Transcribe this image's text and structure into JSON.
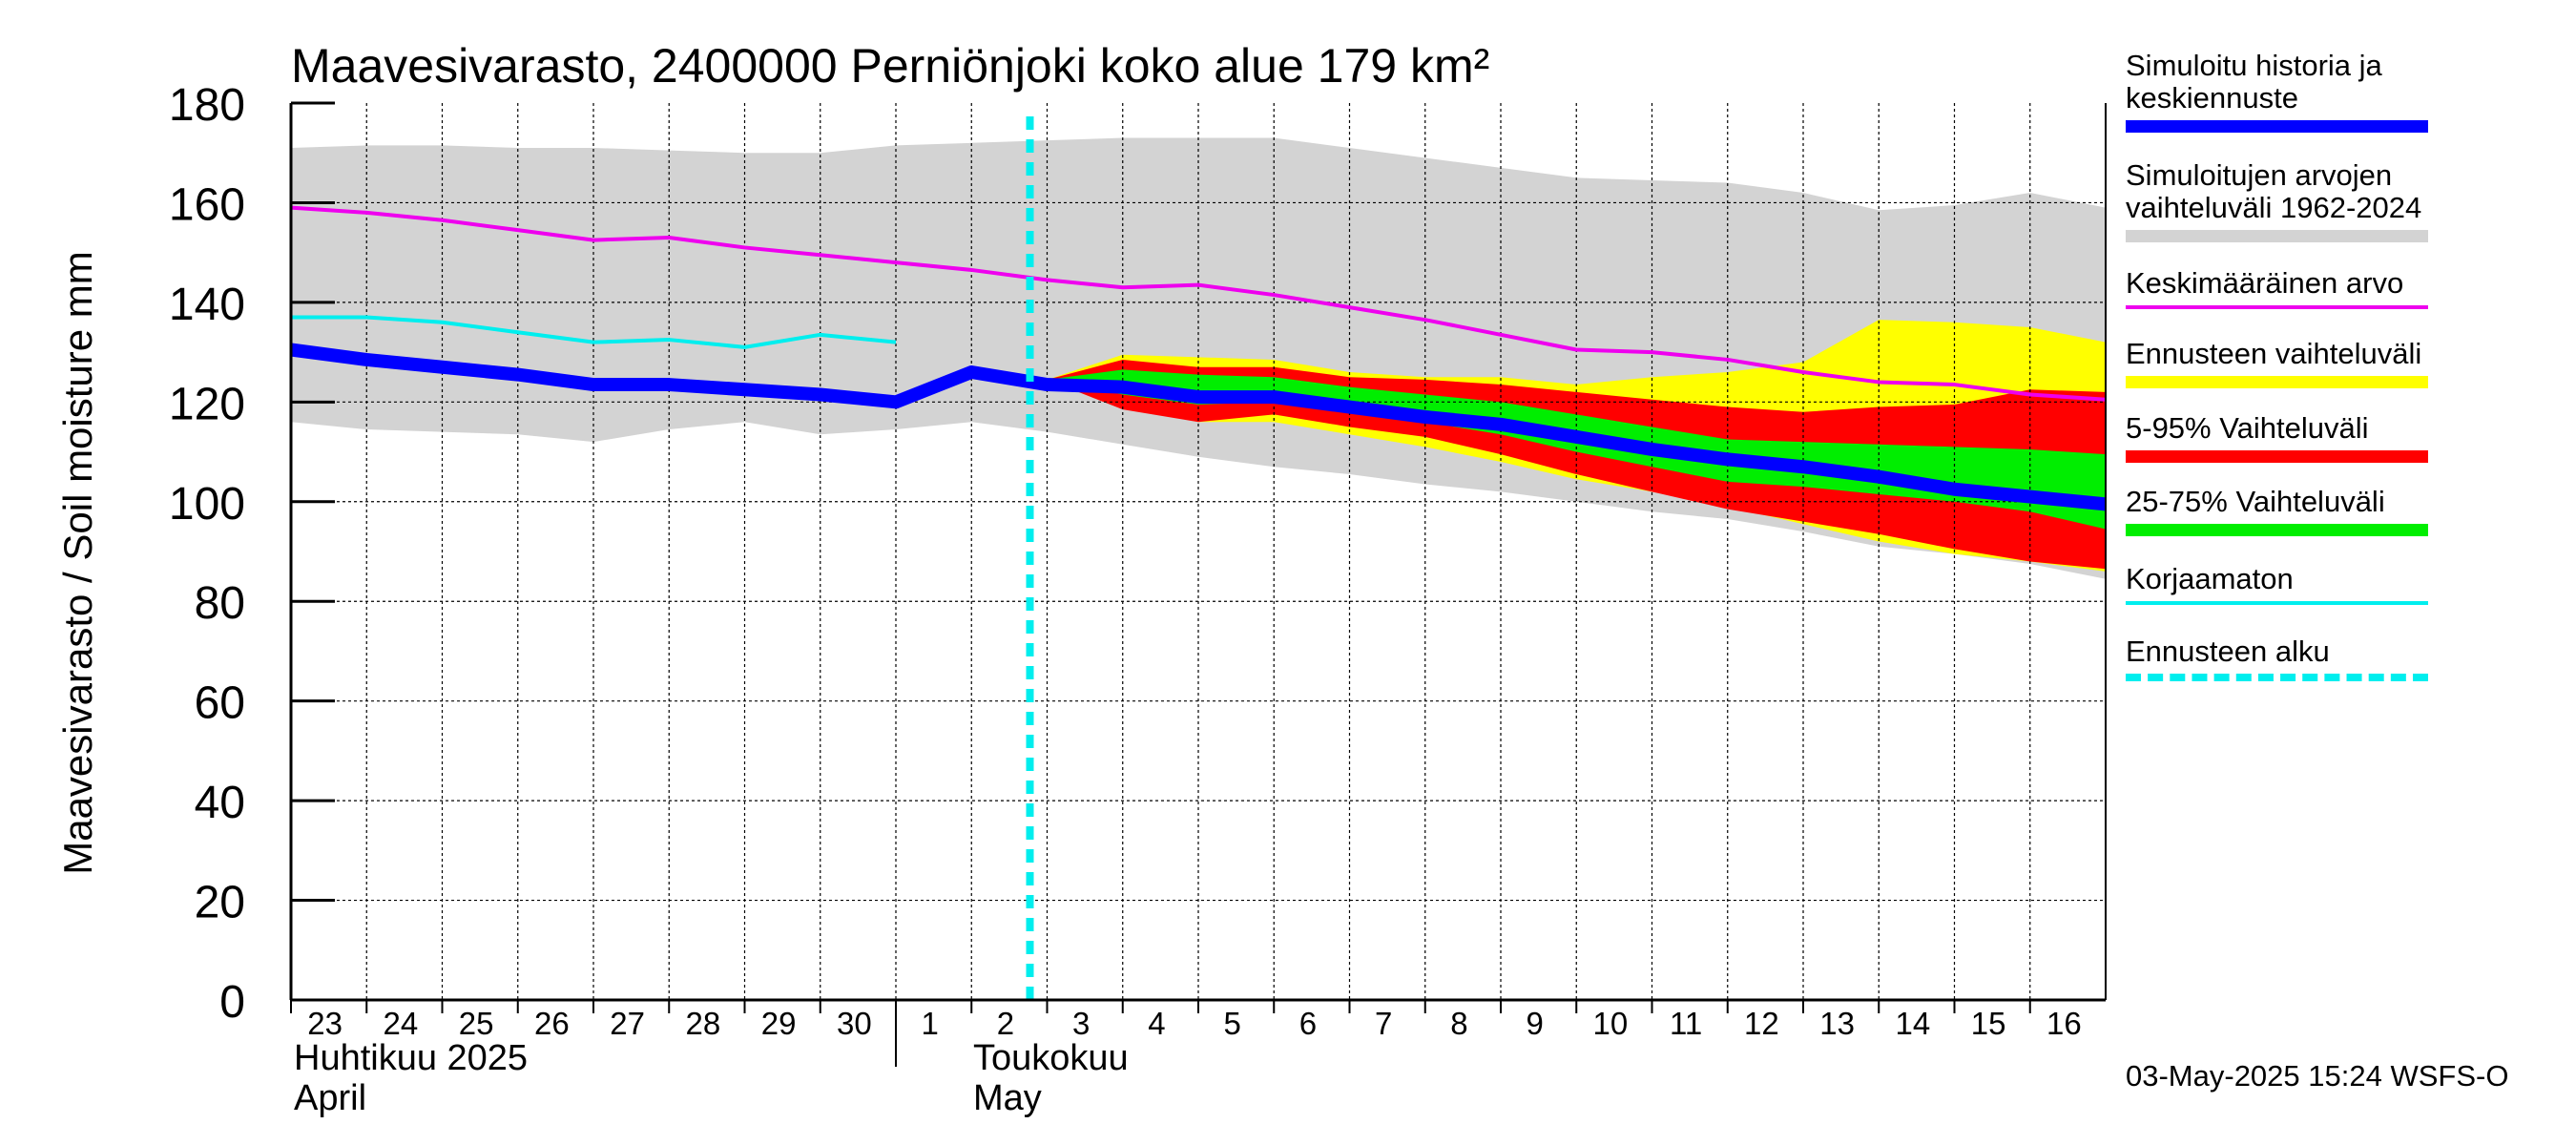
{
  "chart_data": {
    "type": "area",
    "title": "Maavesivarasto, 2400000 Perniönjoki koko alue 179 km²",
    "ylabel": "Maavesivarasto / Soil moisture   mm",
    "ylim": [
      0,
      180
    ],
    "yticks": [
      0,
      20,
      40,
      60,
      80,
      100,
      120,
      140,
      160,
      180
    ],
    "grid": true,
    "x_day_labels": [
      "23",
      "24",
      "25",
      "26",
      "27",
      "28",
      "29",
      "30",
      "1",
      "2",
      "3",
      "4",
      "5",
      "6",
      "7",
      "8",
      "9",
      "10",
      "11",
      "12",
      "13",
      "14",
      "15",
      "16"
    ],
    "month_labels": [
      {
        "fi": "Huhtikuu  2025",
        "en": "April"
      },
      {
        "fi": "Toukokuu",
        "en": "May"
      }
    ],
    "forecast_start_day_index": 10,
    "series": [
      {
        "name": "Simuloitujen arvojen vaihteluväli 1962-2024",
        "kind": "band",
        "color": "#d3d3d3",
        "x": [
          0,
          1,
          2,
          3,
          4,
          5,
          6,
          7,
          8,
          9,
          10,
          11,
          12,
          13,
          14,
          15,
          16,
          17,
          18,
          19,
          20,
          21,
          22,
          23,
          24
        ],
        "upper": [
          171,
          171.5,
          171.5,
          171,
          171,
          170.5,
          170,
          170,
          171.5,
          172,
          172.5,
          173,
          173,
          173,
          171,
          169,
          167,
          165,
          164.5,
          164,
          162,
          158.5,
          159.5,
          162,
          159
        ],
        "lower": [
          116,
          114.5,
          114,
          113.5,
          112,
          114.5,
          116,
          113.5,
          114.5,
          116,
          114,
          111.5,
          109,
          107,
          105.5,
          103.5,
          102,
          100,
          98,
          96.5,
          94,
          91,
          89.5,
          87.5,
          84.5
        ]
      },
      {
        "name": "Ennusteen vaihteluväli",
        "kind": "band",
        "color": "#ffff00",
        "x": [
          10,
          11,
          12,
          13,
          14,
          15,
          16,
          17,
          18,
          19,
          20,
          21,
          22,
          23,
          24
        ],
        "upper": [
          124.5,
          129.5,
          129,
          128.5,
          126,
          125,
          125,
          123.5,
          125,
          126,
          128,
          136.5,
          136,
          135,
          132
        ],
        "lower": [
          124.5,
          119,
          116,
          116,
          113.5,
          111,
          108,
          104.5,
          102,
          99,
          95.5,
          92,
          89.5,
          88,
          86
        ]
      },
      {
        "name": "5-95% Vaihteluväli",
        "kind": "band",
        "color": "#ff0000",
        "x": [
          10,
          11,
          12,
          13,
          14,
          15,
          16,
          17,
          18,
          19,
          20,
          21,
          22,
          23,
          24
        ],
        "upper": [
          124.5,
          128.5,
          127,
          127,
          125,
          124.5,
          123.5,
          122,
          120.5,
          119,
          118,
          119,
          119.5,
          122.5,
          122
        ],
        "lower": [
          124.5,
          118.5,
          116,
          117.5,
          115,
          113,
          109.5,
          105.5,
          102,
          98.5,
          96,
          93.5,
          90.5,
          88,
          86.5
        ]
      },
      {
        "name": "25-75% Vaihteluväli",
        "kind": "band",
        "color": "#00ee00",
        "x": [
          10,
          11,
          12,
          13,
          14,
          15,
          16,
          17,
          18,
          19,
          20,
          21,
          22,
          23,
          24
        ],
        "upper": [
          124.5,
          126.5,
          125.5,
          125,
          123,
          121.5,
          120,
          117.5,
          115,
          112.5,
          112,
          111.5,
          111,
          110.5,
          109.5
        ],
        "lower": [
          124.5,
          121.5,
          119.5,
          120,
          118,
          116,
          113.5,
          110,
          107,
          104,
          103,
          101.5,
          100,
          98,
          94.5
        ]
      },
      {
        "name": "Keskimääräinen arvo",
        "kind": "line",
        "color": "#ee00ee",
        "width": 4,
        "x": [
          0,
          1,
          2,
          3,
          4,
          5,
          6,
          7,
          8,
          9,
          10,
          11,
          12,
          13,
          14,
          15,
          16,
          17,
          18,
          19,
          20,
          21,
          22,
          23,
          24
        ],
        "values": [
          159,
          158,
          156.5,
          154.5,
          152.5,
          153,
          151,
          149.5,
          148,
          146.5,
          144.5,
          143,
          143.5,
          141.5,
          139,
          136.5,
          133.5,
          130.5,
          130,
          128.5,
          126,
          124,
          123.5,
          121.5,
          120.5
        ]
      },
      {
        "name": "Korjaamaton",
        "kind": "line",
        "color": "#00eeee",
        "width": 4,
        "x": [
          0,
          1,
          2,
          3,
          4,
          5,
          6,
          7,
          8
        ],
        "values": [
          137,
          137,
          136,
          134,
          132,
          132.5,
          131,
          133.5,
          132
        ]
      },
      {
        "name": "Simuloitu historia ja keskiennuste",
        "kind": "line",
        "color": "#0000ff",
        "width": 14,
        "x": [
          0,
          1,
          2,
          3,
          4,
          5,
          6,
          7,
          8,
          9,
          10,
          11,
          12,
          13,
          14,
          15,
          16,
          17,
          18,
          19,
          20,
          21,
          22,
          23,
          24
        ],
        "values": [
          130.5,
          128.5,
          127,
          125.5,
          123.5,
          123.5,
          122.5,
          121.5,
          120,
          126,
          123.5,
          123,
          121,
          121,
          119,
          117,
          115.5,
          113,
          110.5,
          108.5,
          107,
          105,
          102.5,
          101,
          99.5
        ]
      }
    ]
  },
  "legend": [
    {
      "label": "Simuloitu historia ja\nkeskiennuste",
      "color": "#0000ff",
      "style": "thick"
    },
    {
      "label": "Simuloitujen arvojen\nvaihteluväli 1962-2024",
      "color": "#d3d3d3",
      "style": "band"
    },
    {
      "label": "Keskimääräinen arvo",
      "color": "#ee00ee",
      "style": "thin"
    },
    {
      "label": "Ennusteen vaihteluväli",
      "color": "#ffff00",
      "style": "band"
    },
    {
      "label": "5-95% Vaihteluväli",
      "color": "#ff0000",
      "style": "band"
    },
    {
      "label": "25-75% Vaihteluväli",
      "color": "#00ee00",
      "style": "band"
    },
    {
      "label": "Korjaamaton",
      "color": "#00eeee",
      "style": "thin"
    },
    {
      "label": "Ennusteen alku",
      "color": "#00eeee",
      "style": "dashed"
    }
  ],
  "footer": "03-May-2025 15:24 WSFS-O"
}
